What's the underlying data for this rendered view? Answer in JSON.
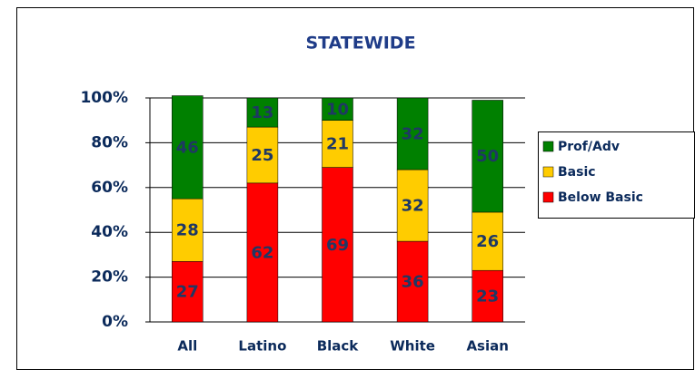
{
  "chart_data": {
    "type": "stacked_bar",
    "title": "STATEWIDE",
    "categories": [
      "All",
      "Latino",
      "Black",
      "White",
      "Asian"
    ],
    "series": [
      {
        "name": "Below Basic",
        "color": "#ff0000",
        "values": [
          27,
          62,
          69,
          36,
          23
        ]
      },
      {
        "name": "Basic",
        "color": "#ffcc00",
        "values": [
          28,
          25,
          21,
          32,
          26
        ]
      },
      {
        "name": "Prof/Adv",
        "color": "#008000",
        "values": [
          46,
          13,
          10,
          32,
          50
        ]
      }
    ],
    "ylim": [
      0,
      100
    ],
    "yticks": [
      {
        "value": 0,
        "label": "0%"
      },
      {
        "value": 20,
        "label": "20%"
      },
      {
        "value": 40,
        "label": "40%"
      },
      {
        "value": 60,
        "label": "60%"
      },
      {
        "value": 80,
        "label": "80%"
      },
      {
        "value": 100,
        "label": "100%"
      }
    ],
    "grid": true,
    "legend": "right"
  }
}
